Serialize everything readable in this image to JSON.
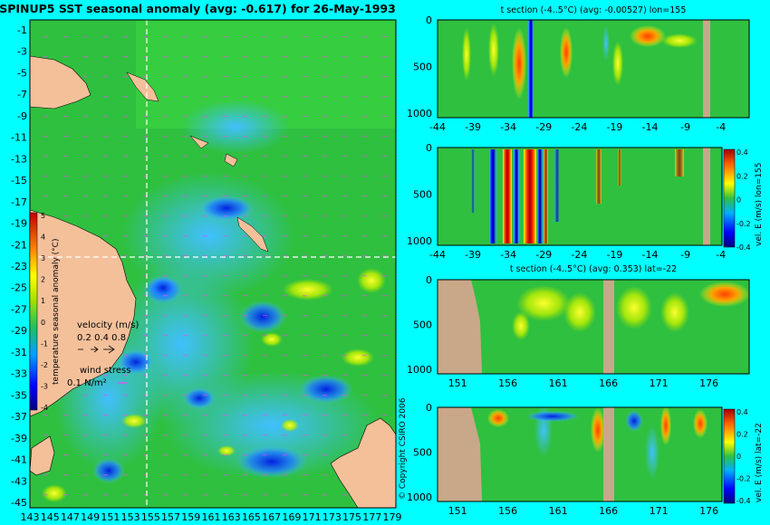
{
  "main_title": "SPINUP5 SST seasonal anomaly (avg: -0.617) for 26-May-1993",
  "copyright": "© Copyright CSIRO 2006",
  "colors": {
    "background": "#00ffff",
    "land": "#f4c09a",
    "ocean": "#2fc040",
    "section_land": "#c8a888",
    "crosshair": "#ffffff"
  },
  "map": {
    "lat_ticks": [
      "-1",
      "-3",
      "-5",
      "-7",
      "-9",
      "-11",
      "-13",
      "-15",
      "-17",
      "-19",
      "-21",
      "-23",
      "-25",
      "-27",
      "-29",
      "-31",
      "-33",
      "-35",
      "-37",
      "-39",
      "-41",
      "-43",
      "-45"
    ],
    "lon_ticks": [
      "143",
      "145",
      "147",
      "149",
      "151",
      "153",
      "155",
      "157",
      "159",
      "161",
      "163",
      "165",
      "167",
      "169",
      "171",
      "173",
      "175",
      "177",
      "179"
    ],
    "crosshair": {
      "lon": 155,
      "lat": -22
    },
    "colorbar": {
      "ticks": [
        "5",
        "4",
        "3",
        "2",
        "1",
        "0",
        "-1",
        "-2",
        "-3",
        "-4"
      ],
      "label": "temperature seasonal anomaly (°C)"
    },
    "legend": {
      "velocity_title": "velocity (m/s)",
      "velocity_values": "0.2 0.4 0.8",
      "wind_title": "wind stress",
      "wind_value": "0.1 N/m²"
    }
  },
  "sections": {
    "colorbar_ticks": [
      "0.4",
      "0.2",
      "0",
      "-0.2",
      "-0.4"
    ],
    "depth_ticks": [
      "0",
      "500",
      "1000"
    ],
    "lat_ticks": [
      "-44",
      "-39",
      "-34",
      "-29",
      "-24",
      "-19",
      "-14",
      "-9",
      "-4"
    ],
    "lon_ticks": [
      "151",
      "156",
      "161",
      "166",
      "171",
      "176"
    ],
    "panel1_title": "t section (-4..5°C) (avg: -0.00527) lon=155",
    "panel2_cbar_label": "vel. E (m/s) lon=155",
    "panel3_title": "t section (-4..5°C) (avg: 0.353) lat=-22",
    "panel4_cbar_label": "vel. E (m/s) lat=-22"
  },
  "chart_data": [
    {
      "type": "heatmap",
      "title": "SPINUP5 SST seasonal anomaly (avg: -0.617) for 26-May-1993",
      "xlim": [
        143,
        179
      ],
      "ylim": [
        -45,
        0
      ],
      "color_range": [
        -4,
        5
      ],
      "colorbar_label": "temperature seasonal anomaly (°C)"
    },
    {
      "type": "heatmap",
      "title": "t section (-4..5°C) (avg: -0.00527) lon=155",
      "xlim": [
        -44,
        0
      ],
      "ylim": [
        1050,
        0
      ],
      "ylabel": ""
    },
    {
      "type": "heatmap",
      "title": "",
      "xlim": [
        -44,
        0
      ],
      "ylim": [
        1050,
        0
      ],
      "color_range": [
        -0.4,
        0.4
      ],
      "colorbar_label": "vel. E (m/s) lon=155"
    },
    {
      "type": "heatmap",
      "title": "t section (-4..5°C) (avg: 0.353) lat=-22",
      "xlim": [
        149,
        180
      ],
      "ylim": [
        1050,
        0
      ]
    },
    {
      "type": "heatmap",
      "title": "",
      "xlim": [
        149,
        180
      ],
      "ylim": [
        1050,
        0
      ],
      "color_range": [
        -0.4,
        0.4
      ],
      "colorbar_label": "vel. E (m/s) lat=-22"
    }
  ]
}
